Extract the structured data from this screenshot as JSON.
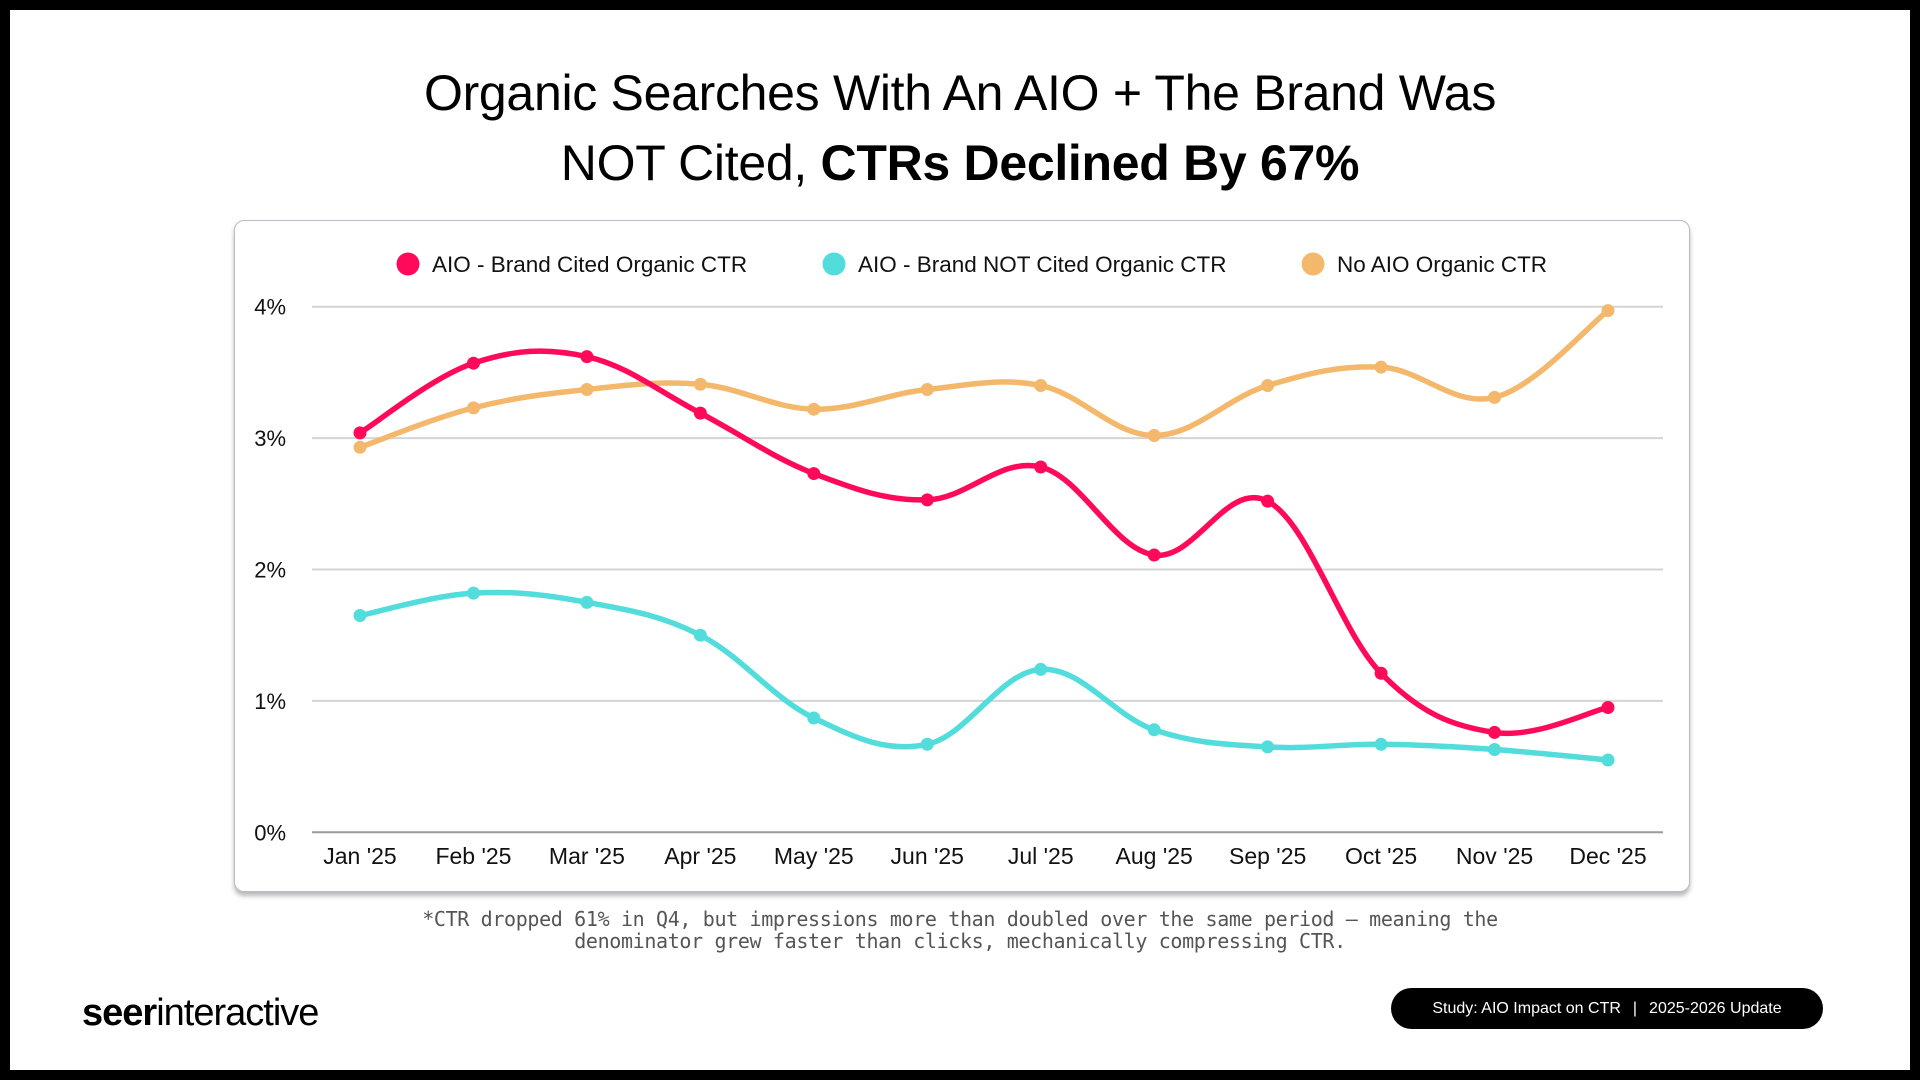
{
  "title": {
    "line1": "Organic Searches With An AIO + The Brand Was",
    "line2_regular": "NOT Cited,",
    "line2_bold": "CTRs Declined By 67%"
  },
  "footnote": {
    "line1": "*CTR dropped 61% in Q4, but impressions more than doubled over the same period — meaning the",
    "line2": "denominator grew faster than clicks, mechanically compressing CTR."
  },
  "logo": {
    "bold": "seer",
    "regular": "interactive"
  },
  "badge": {
    "left": "Study: AIO Impact on CTR",
    "separator": "|",
    "right": "2025-2026 Update"
  },
  "chart_data": {
    "type": "line",
    "title": "Organic Searches With An AIO + The Brand Was NOT Cited, CTRs Declined By 67%",
    "xlabel": "",
    "ylabel": "",
    "categories": [
      "Jan '25",
      "Feb '25",
      "Mar '25",
      "Apr '25",
      "May '25",
      "Jun '25",
      "Jul '25",
      "Aug '25",
      "Sep '25",
      "Oct '25",
      "Nov '25",
      "Dec '25"
    ],
    "ylim": [
      0,
      4
    ],
    "yticks": [
      0,
      1,
      2,
      3,
      4
    ],
    "ytick_labels": [
      "0%",
      "1%",
      "2%",
      "3%",
      "4%"
    ],
    "grid": true,
    "legend_position": "top-center",
    "smooth": true,
    "series": [
      {
        "name": "AIO - Brand Cited Organic CTR",
        "color": "#ff0a5a",
        "values": [
          3.04,
          3.57,
          3.62,
          3.19,
          2.73,
          2.53,
          2.78,
          2.11,
          2.52,
          1.21,
          0.76,
          0.95
        ]
      },
      {
        "name": "AIO - Brand NOT Cited Organic CTR",
        "color": "#52dcdc",
        "values": [
          1.65,
          1.82,
          1.75,
          1.5,
          0.87,
          0.67,
          1.24,
          0.78,
          0.65,
          0.67,
          0.63,
          0.55
        ]
      },
      {
        "name": "No AIO Organic CTR",
        "color": "#f3b86c",
        "values": [
          2.93,
          3.23,
          3.37,
          3.41,
          3.22,
          3.37,
          3.4,
          3.02,
          3.4,
          3.54,
          3.31,
          3.97
        ]
      }
    ]
  }
}
